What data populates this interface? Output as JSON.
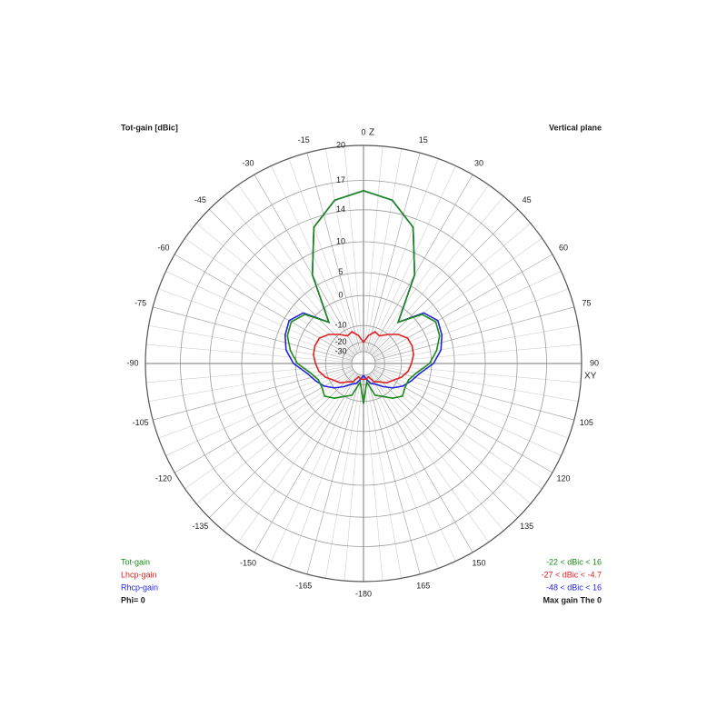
{
  "chart_data": {
    "type": "polar",
    "title": "Tot-gain [dBic]",
    "subtitle": "Vertical plane",
    "radial_scale": "arrl",
    "rlim": [
      -30,
      20
    ],
    "rticks": [
      20,
      17,
      14,
      10,
      5,
      0,
      -10,
      -20,
      -30
    ],
    "thetaticks": [
      -180,
      -165,
      -150,
      -135,
      -120,
      -105,
      -90,
      -75,
      -60,
      -45,
      -30,
      -15,
      0,
      15,
      30,
      45,
      60,
      75,
      90,
      105,
      120,
      135,
      150,
      165
    ],
    "axis_labels": {
      "zenith": "Z",
      "horizon": "XY"
    },
    "x": [
      -180,
      -170,
      -160,
      -150,
      -140,
      -130,
      -120,
      -110,
      -100,
      -90,
      -80,
      -70,
      -60,
      -50,
      -40,
      -30,
      -20,
      -10,
      0,
      10,
      20,
      30,
      40,
      50,
      60,
      70,
      80,
      90,
      100,
      110,
      120,
      130,
      140,
      150,
      160,
      170,
      180
    ],
    "series": [
      {
        "name": "Rhcp-gain",
        "color": "#2222dd",
        "range_label": "-48 < dBic < 16",
        "values": [
          -30,
          -25,
          -20,
          -18,
          -14,
          -10,
          -7,
          -5,
          -3,
          0.5,
          2.5,
          3.5,
          4,
          2.5,
          -4,
          7,
          13,
          15.3,
          16,
          15.3,
          13,
          7,
          -4,
          2.5,
          4,
          3.5,
          2.5,
          0.5,
          -3,
          -5,
          -7,
          -10,
          -14,
          -18,
          -20,
          -25,
          -30
        ]
      },
      {
        "name": "Lhcp-gain",
        "color": "#dd2222",
        "range_label": "-27 < dBic < -4.7",
        "values": [
          -25,
          -25,
          -27,
          -20,
          -18,
          -14,
          -12,
          -9,
          -7,
          -6,
          -5,
          -4.7,
          -5,
          -7,
          -10,
          -13,
          -12,
          -15,
          -20,
          -15,
          -12,
          -13,
          -10,
          -7,
          -5,
          -4.7,
          -5,
          -6,
          -7,
          -9,
          -12,
          -14,
          -18,
          -20,
          -27,
          -25,
          -25
        ]
      },
      {
        "name": "Tot-gain",
        "color": "#1a8a1a",
        "range_label": "-22 < dBic < 16",
        "values": [
          -9,
          -22,
          -12,
          -10,
          -7,
          -5,
          -6,
          -6,
          -4,
          -0.5,
          1.5,
          3,
          3.5,
          2,
          -4,
          7,
          13,
          15.3,
          16,
          15.3,
          13,
          7,
          -4,
          2,
          3.5,
          3,
          1.5,
          -0.5,
          -4,
          -6,
          -6,
          -5,
          -7,
          -10,
          -12,
          -22,
          -9
        ]
      }
    ],
    "legend_order": [
      2,
      1,
      0
    ],
    "annotations": {
      "phi": "Phi= 0",
      "max_gain": "Max gain The 0"
    }
  }
}
